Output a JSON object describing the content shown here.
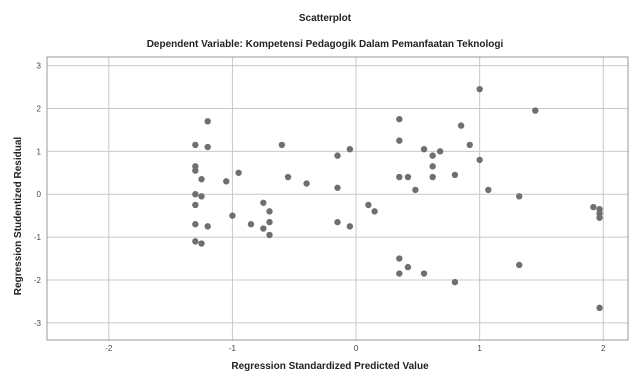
{
  "chart_data": {
    "type": "scatter",
    "title": "Scatterplot",
    "subtitle": "Dependent Variable: Kompetensi Pedagogik Dalam Pemanfaatan Teknologi",
    "xlabel": "Regression Standardized Predicted Value",
    "ylabel": "Regression Studentized Residual",
    "xlim": [
      -2.5,
      2.2
    ],
    "ylim": [
      -3.4,
      3.2
    ],
    "x_ticks": [
      -2,
      -1,
      0,
      1,
      2
    ],
    "y_ticks": [
      3,
      2,
      1,
      0,
      -1,
      -2,
      -3
    ],
    "grid": true,
    "marker_color": "#6f6f6f",
    "frame_color": "#9a9a9a",
    "grid_color": "#c8c8c8",
    "points": [
      {
        "x": -1.3,
        "y": 1.15
      },
      {
        "x": -1.3,
        "y": 0.65
      },
      {
        "x": -1.3,
        "y": 0.55
      },
      {
        "x": -1.3,
        "y": 0.0
      },
      {
        "x": -1.3,
        "y": -0.25
      },
      {
        "x": -1.3,
        "y": -0.7
      },
      {
        "x": -1.3,
        "y": -1.1
      },
      {
        "x": -1.25,
        "y": 0.35
      },
      {
        "x": -1.25,
        "y": -0.05
      },
      {
        "x": -1.25,
        "y": -1.15
      },
      {
        "x": -1.2,
        "y": 1.7
      },
      {
        "x": -1.2,
        "y": 1.1
      },
      {
        "x": -1.2,
        "y": -0.75
      },
      {
        "x": -1.05,
        "y": 0.3
      },
      {
        "x": -1.0,
        "y": -0.5
      },
      {
        "x": -0.95,
        "y": 0.5
      },
      {
        "x": -0.85,
        "y": -0.7
      },
      {
        "x": -0.75,
        "y": -0.2
      },
      {
        "x": -0.75,
        "y": -0.8
      },
      {
        "x": -0.7,
        "y": -0.4
      },
      {
        "x": -0.7,
        "y": -0.65
      },
      {
        "x": -0.7,
        "y": -0.95
      },
      {
        "x": -0.6,
        "y": 1.15
      },
      {
        "x": -0.55,
        "y": 0.4
      },
      {
        "x": -0.4,
        "y": 0.25
      },
      {
        "x": -0.15,
        "y": 0.9
      },
      {
        "x": -0.15,
        "y": 0.15
      },
      {
        "x": -0.15,
        "y": -0.65
      },
      {
        "x": -0.05,
        "y": 1.05
      },
      {
        "x": -0.05,
        "y": -0.75
      },
      {
        "x": 0.1,
        "y": -0.25
      },
      {
        "x": 0.15,
        "y": -0.4
      },
      {
        "x": 0.35,
        "y": 1.75
      },
      {
        "x": 0.35,
        "y": 1.25
      },
      {
        "x": 0.35,
        "y": 0.4
      },
      {
        "x": 0.35,
        "y": -1.5
      },
      {
        "x": 0.35,
        "y": -1.85
      },
      {
        "x": 0.42,
        "y": 0.4
      },
      {
        "x": 0.42,
        "y": -1.7
      },
      {
        "x": 0.48,
        "y": 0.1
      },
      {
        "x": 0.55,
        "y": 1.05
      },
      {
        "x": 0.55,
        "y": -1.85
      },
      {
        "x": 0.62,
        "y": 0.9
      },
      {
        "x": 0.62,
        "y": 0.65
      },
      {
        "x": 0.62,
        "y": 0.4
      },
      {
        "x": 0.68,
        "y": 1.0
      },
      {
        "x": 0.8,
        "y": 0.45
      },
      {
        "x": 0.8,
        "y": -2.05
      },
      {
        "x": 0.85,
        "y": 1.6
      },
      {
        "x": 0.92,
        "y": 1.15
      },
      {
        "x": 1.0,
        "y": 2.45
      },
      {
        "x": 1.0,
        "y": 0.8
      },
      {
        "x": 1.07,
        "y": 0.1
      },
      {
        "x": 1.32,
        "y": -0.05
      },
      {
        "x": 1.32,
        "y": -1.65
      },
      {
        "x": 1.45,
        "y": 1.95
      },
      {
        "x": 1.92,
        "y": -0.3
      },
      {
        "x": 1.97,
        "y": -0.35
      },
      {
        "x": 1.97,
        "y": -0.45
      },
      {
        "x": 1.97,
        "y": -0.55
      },
      {
        "x": 1.97,
        "y": -2.65
      }
    ]
  }
}
